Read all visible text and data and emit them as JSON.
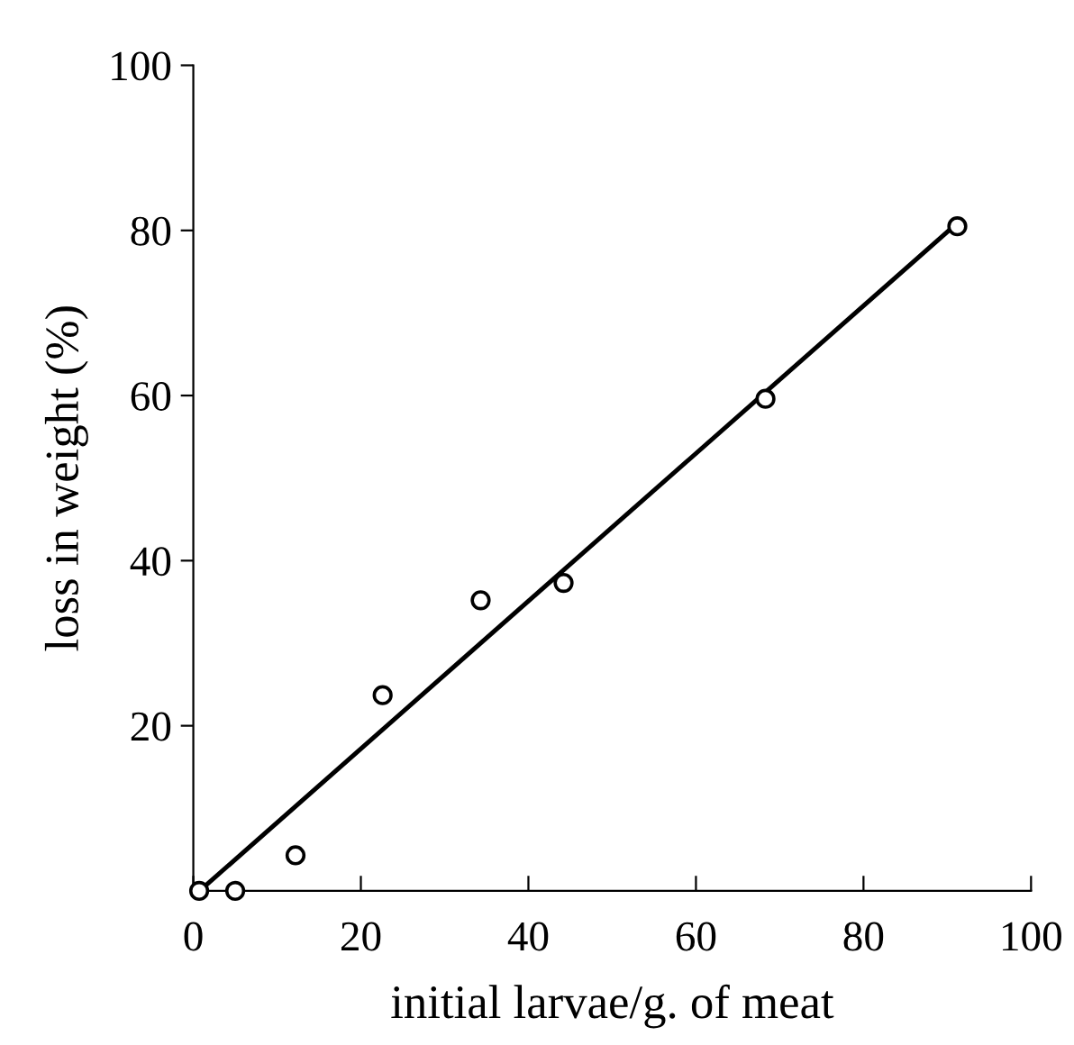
{
  "chart_data": {
    "type": "scatter",
    "xlabel": "initial larvae/g. of meat",
    "ylabel": "loss in weight (%)",
    "xlim": [
      0,
      100
    ],
    "ylim": [
      0,
      100
    ],
    "xticks": [
      0,
      20,
      40,
      60,
      80,
      100
    ],
    "yticks": [
      20,
      40,
      60,
      80,
      100
    ],
    "grid": false,
    "series": [
      {
        "marker": "circle",
        "color": "#000000",
        "x": [
          0.7,
          5,
          12.2,
          22.6,
          34.3,
          44.2,
          68.3,
          91.2
        ],
        "values": [
          0,
          0,
          4.3,
          23.7,
          35.2,
          37.3,
          59.6,
          80.5
        ]
      },
      {
        "type": "line",
        "color": "#000000",
        "line_style": "solid",
        "x": [
          1.2,
          90.2
        ],
        "values": [
          0.4,
          80
        ]
      }
    ]
  }
}
